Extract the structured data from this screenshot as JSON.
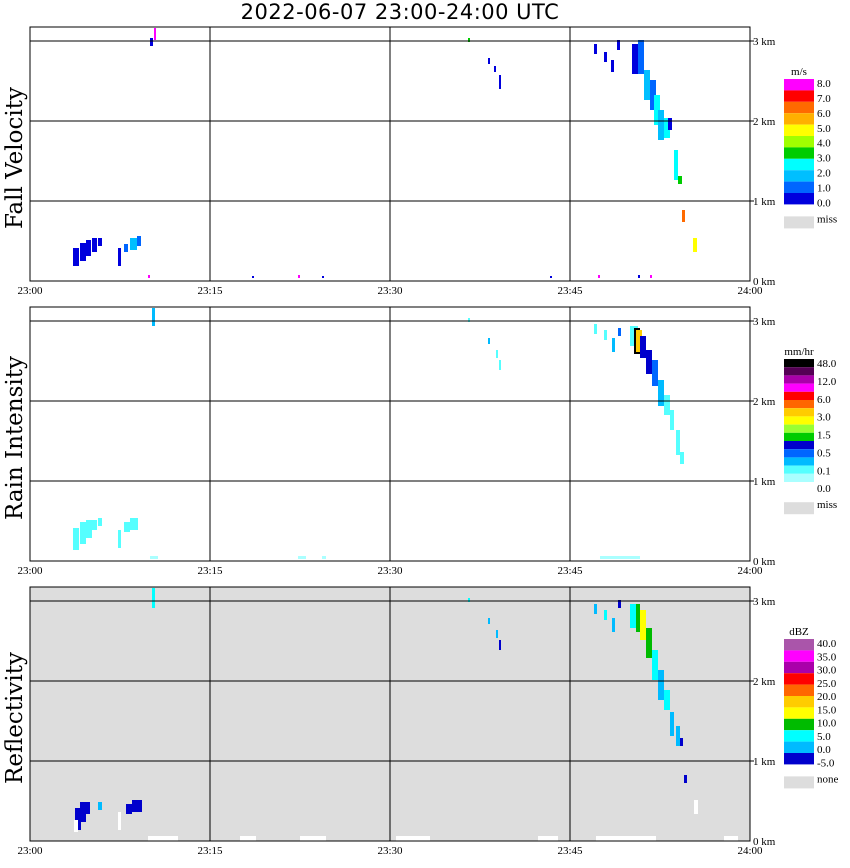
{
  "title": "2022-06-07   23:00-24:00 UTC",
  "chart_data": [
    {
      "type": "heatmap",
      "ylabel": "Fall Velocity",
      "x_ticks": [
        "23:00",
        "23:15",
        "23:30",
        "23:45",
        "24:00"
      ],
      "y_ticks": [
        "0 km",
        "1 km",
        "2 km",
        "3 km"
      ],
      "x_range_min": [
        0,
        60
      ],
      "y_range_km": [
        0,
        3.2
      ],
      "background": "#ffffff",
      "legend": {
        "unit": "m/s",
        "labels": [
          "8.0",
          "7.0",
          "6.0",
          "5.0",
          "4.0",
          "3.0",
          "2.0",
          "1.0",
          "0.0"
        ],
        "colors": [
          "#ff00ff",
          "#ff0000",
          "#ff6a00",
          "#ffb000",
          "#ffff00",
          "#a0ff00",
          "#00cc00",
          "#00ffff",
          "#00bfff",
          "#0066ff",
          "#0000dd"
        ],
        "miss_label": "miss",
        "miss_color": "#dddddd"
      }
    },
    {
      "type": "heatmap",
      "ylabel": "Rain Intensity",
      "x_ticks": [
        "23:00",
        "23:15",
        "23:30",
        "23:45",
        "24:00"
      ],
      "y_ticks": [
        "0 km",
        "1 km",
        "2 km",
        "3 km"
      ],
      "x_range_min": [
        0,
        60
      ],
      "y_range_km": [
        0,
        3.2
      ],
      "background": "#ffffff",
      "legend": {
        "unit": "mm/hr",
        "labels": [
          "48.0",
          "12.0",
          "6.0",
          "3.0",
          "1.5",
          "0.5",
          "0.1",
          "0.0"
        ],
        "colors": [
          "#000000",
          "#550055",
          "#aa00aa",
          "#ff00ff",
          "#ff0000",
          "#ff6600",
          "#ffcc00",
          "#ffff00",
          "#99ff33",
          "#00cc00",
          "#0000cc",
          "#0066ff",
          "#00bbff",
          "#55ffff",
          "#aaffff",
          "#ffffff"
        ],
        "miss_label": "miss",
        "miss_color": "#dddddd"
      }
    },
    {
      "type": "heatmap",
      "ylabel": "Reflectivity",
      "x_ticks": [
        "23:00",
        "23:15",
        "23:30",
        "23:45",
        "24:00"
      ],
      "y_ticks": [
        "0 km",
        "1 km",
        "2 km",
        "3 km"
      ],
      "x_range_min": [
        0,
        60
      ],
      "y_range_km": [
        0,
        3.2
      ],
      "background": "#dddddd",
      "legend": {
        "unit": "dBZ",
        "labels": [
          "40.0",
          "35.0",
          "30.0",
          "25.0",
          "20.0",
          "15.0",
          "10.0",
          "5.0",
          "0.0",
          "-5.0"
        ],
        "colors": [
          "#aa55aa",
          "#ff00ff",
          "#aa00aa",
          "#ff0000",
          "#ff6600",
          "#ffcc00",
          "#ffff00",
          "#00bb00",
          "#00ffff",
          "#00bbff",
          "#0000cc"
        ],
        "miss_label": "none",
        "miss_color": "#dddddd"
      }
    }
  ]
}
